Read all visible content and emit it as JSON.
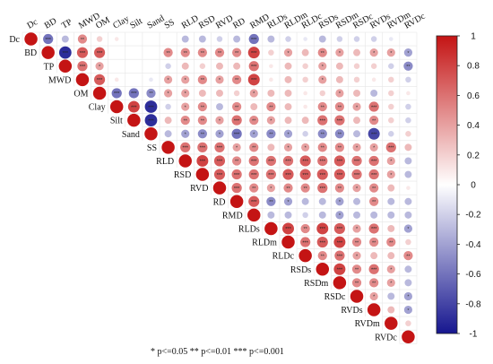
{
  "chart_data": {
    "type": "heatmap",
    "variables": [
      "Dc",
      "BD",
      "TP",
      "MWD",
      "OM",
      "Clay",
      "Silt",
      "Sand",
      "SS",
      "RLD",
      "RSD",
      "RVD",
      "RD",
      "RMD",
      "RLDs",
      "RLDm",
      "RLDc",
      "RSDs",
      "RSDm",
      "RSDc",
      "RVDs",
      "RVDm",
      "RVDc"
    ],
    "correlation_matrix": [
      [
        1.0,
        -0.6,
        -0.3,
        0.5,
        0.2,
        0.1,
        0.0,
        0.0,
        0.0,
        -0.3,
        -0.3,
        -0.2,
        -0.3,
        -0.6,
        -0.3,
        -0.2,
        -0.1,
        -0.3,
        -0.2,
        -0.2,
        -0.2,
        -0.1,
        0.0
      ],
      [
        -0.6,
        1.0,
        -0.9,
        0.7,
        0.7,
        0.0,
        0.0,
        0.0,
        0.5,
        0.5,
        0.5,
        0.5,
        0.5,
        0.8,
        0.2,
        0.4,
        0.3,
        0.5,
        0.4,
        0.3,
        0.4,
        0.4,
        -0.4
      ],
      [
        -0.3,
        -0.9,
        1.0,
        0.6,
        0.4,
        0.0,
        0.0,
        0.0,
        -0.2,
        0.3,
        0.2,
        0.3,
        0.3,
        0.6,
        0.1,
        0.3,
        0.2,
        0.4,
        0.3,
        0.2,
        0.2,
        -0.2,
        -0.5
      ],
      [
        0.5,
        0.7,
        0.6,
        1.0,
        0.7,
        0.1,
        0.0,
        -0.1,
        0.4,
        0.4,
        0.5,
        0.4,
        0.5,
        0.8,
        0.1,
        0.3,
        0.2,
        0.4,
        0.3,
        0.2,
        0.1,
        0.2,
        -0.2
      ],
      [
        0.2,
        0.7,
        0.4,
        0.7,
        1.0,
        -0.6,
        -0.6,
        -0.5,
        0.4,
        0.4,
        0.3,
        0.3,
        0.2,
        0.4,
        0.3,
        0.3,
        0.1,
        0.2,
        0.4,
        0.3,
        -0.3,
        0.2,
        0.1
      ],
      [
        0.1,
        0.0,
        0.0,
        0.1,
        -0.6,
        1.0,
        0.8,
        -0.9,
        -0.2,
        0.4,
        0.5,
        -0.3,
        0.5,
        0.3,
        0.5,
        0.3,
        0.1,
        0.5,
        0.5,
        0.4,
        0.6,
        0.2,
        -0.2
      ],
      [
        0.0,
        0.0,
        0.0,
        0.0,
        -0.6,
        0.8,
        1.0,
        -0.9,
        0.3,
        0.5,
        0.5,
        0.4,
        0.6,
        0.5,
        0.4,
        0.3,
        0.3,
        0.6,
        0.6,
        0.3,
        0.5,
        0.2,
        -0.2
      ],
      [
        0.0,
        0.0,
        0.0,
        -0.1,
        -0.5,
        -0.9,
        -0.9,
        1.0,
        -0.3,
        -0.4,
        -0.5,
        -0.4,
        -0.6,
        -0.4,
        -0.5,
        -0.4,
        -0.2,
        -0.5,
        -0.5,
        -0.3,
        -0.8,
        -0.2,
        0.2
      ],
      [
        0.0,
        0.5,
        -0.2,
        0.4,
        0.4,
        -0.2,
        0.3,
        -0.3,
        1.0,
        0.6,
        0.6,
        0.6,
        0.4,
        0.5,
        0.3,
        0.4,
        0.4,
        0.5,
        0.5,
        0.4,
        0.4,
        0.6,
        0.3
      ],
      [
        -0.3,
        0.5,
        0.3,
        0.4,
        0.4,
        0.4,
        0.5,
        -0.4,
        0.6,
        1.0,
        0.8,
        0.7,
        0.5,
        0.6,
        0.6,
        0.6,
        0.7,
        0.6,
        0.7,
        0.6,
        0.6,
        0.4,
        -0.3
      ],
      [
        -0.3,
        0.5,
        0.2,
        0.5,
        0.3,
        0.5,
        0.5,
        -0.5,
        0.6,
        0.8,
        1.0,
        0.7,
        0.6,
        0.6,
        0.6,
        0.7,
        0.7,
        0.7,
        0.7,
        0.6,
        0.6,
        0.4,
        -0.3
      ],
      [
        -0.2,
        0.5,
        0.3,
        0.4,
        0.3,
        -0.3,
        0.4,
        -0.4,
        0.6,
        0.7,
        0.7,
        1.0,
        0.6,
        0.5,
        0.4,
        0.5,
        0.5,
        0.6,
        0.5,
        0.4,
        0.5,
        0.3,
        0.1
      ],
      [
        -0.3,
        0.5,
        0.3,
        0.5,
        0.2,
        0.5,
        0.6,
        -0.6,
        0.4,
        0.5,
        0.6,
        0.6,
        1.0,
        0.7,
        -0.5,
        -0.4,
        -0.3,
        -0.3,
        -0.4,
        -0.3,
        0.5,
        -0.3,
        -0.3
      ],
      [
        -0.6,
        0.8,
        0.6,
        0.8,
        0.4,
        0.3,
        0.5,
        -0.4,
        0.5,
        0.6,
        0.6,
        0.5,
        0.7,
        1.0,
        -0.3,
        -0.3,
        -0.2,
        -0.3,
        -0.4,
        -0.3,
        -0.3,
        -0.3,
        -0.3
      ],
      [
        -0.3,
        0.2,
        0.1,
        0.1,
        0.3,
        0.5,
        0.4,
        -0.5,
        0.3,
        0.6,
        0.6,
        0.4,
        -0.5,
        -0.3,
        1.0,
        0.8,
        0.5,
        0.8,
        0.7,
        0.4,
        0.6,
        0.3,
        -0.4
      ],
      [
        -0.2,
        0.4,
        0.3,
        0.3,
        0.3,
        0.3,
        0.3,
        -0.4,
        0.4,
        0.6,
        0.7,
        0.5,
        -0.4,
        -0.3,
        0.8,
        1.0,
        0.6,
        0.7,
        0.8,
        0.5,
        0.5,
        0.5,
        0.2
      ],
      [
        -0.1,
        0.3,
        0.2,
        0.2,
        0.1,
        0.1,
        0.3,
        -0.2,
        0.4,
        0.7,
        0.7,
        0.5,
        -0.3,
        -0.2,
        0.5,
        0.6,
        1.0,
        0.5,
        0.6,
        0.4,
        0.3,
        0.3,
        0.5
      ],
      [
        -0.3,
        0.5,
        0.4,
        0.4,
        0.2,
        0.5,
        0.6,
        -0.5,
        0.5,
        0.6,
        0.7,
        0.6,
        -0.3,
        -0.3,
        0.8,
        0.7,
        0.5,
        1.0,
        0.8,
        0.5,
        0.6,
        0.4,
        -0.3
      ],
      [
        -0.2,
        0.4,
        0.3,
        0.3,
        0.4,
        0.5,
        0.6,
        -0.5,
        0.5,
        0.7,
        0.7,
        0.5,
        -0.4,
        -0.4,
        0.7,
        0.8,
        0.6,
        0.8,
        1.0,
        0.5,
        0.5,
        0.4,
        -0.3
      ],
      [
        -0.2,
        0.3,
        0.2,
        0.2,
        0.3,
        0.4,
        0.3,
        -0.3,
        0.4,
        0.6,
        0.6,
        0.4,
        -0.3,
        -0.3,
        0.4,
        0.5,
        0.4,
        0.5,
        0.5,
        1.0,
        0.4,
        -0.3,
        -0.4
      ],
      [
        -0.2,
        0.4,
        0.2,
        0.1,
        -0.3,
        0.6,
        0.5,
        -0.8,
        0.4,
        0.6,
        0.6,
        0.5,
        0.5,
        -0.3,
        0.6,
        0.5,
        0.3,
        0.6,
        0.5,
        0.4,
        1.0,
        0.3,
        -0.4
      ],
      [
        -0.1,
        0.4,
        -0.2,
        0.2,
        0.2,
        0.2,
        0.2,
        -0.2,
        0.6,
        0.4,
        0.4,
        0.3,
        -0.3,
        -0.3,
        0.3,
        0.5,
        0.3,
        0.4,
        0.4,
        -0.3,
        0.3,
        1.0,
        0.2
      ],
      [
        0.0,
        -0.4,
        -0.5,
        -0.2,
        0.1,
        -0.2,
        -0.2,
        0.2,
        0.3,
        -0.3,
        -0.3,
        0.1,
        -0.3,
        -0.3,
        -0.4,
        0.2,
        0.5,
        -0.3,
        -0.3,
        -0.4,
        -0.4,
        0.2,
        1.0
      ]
    ],
    "significance_note": "* p<=0.05  ** p<=0.01  *** p<=0.001",
    "colorbar": {
      "range": [
        -1,
        1
      ],
      "ticks": [
        "1",
        "0.8",
        "0.6",
        "0.4",
        "0.2",
        "0",
        "-0.2",
        "-0.4",
        "-0.6",
        "-0.8",
        "-1"
      ],
      "colors": {
        "negative": "#16168f",
        "zero": "#ffffff",
        "positive": "#c41414"
      }
    },
    "grid": true,
    "legend": "right"
  }
}
